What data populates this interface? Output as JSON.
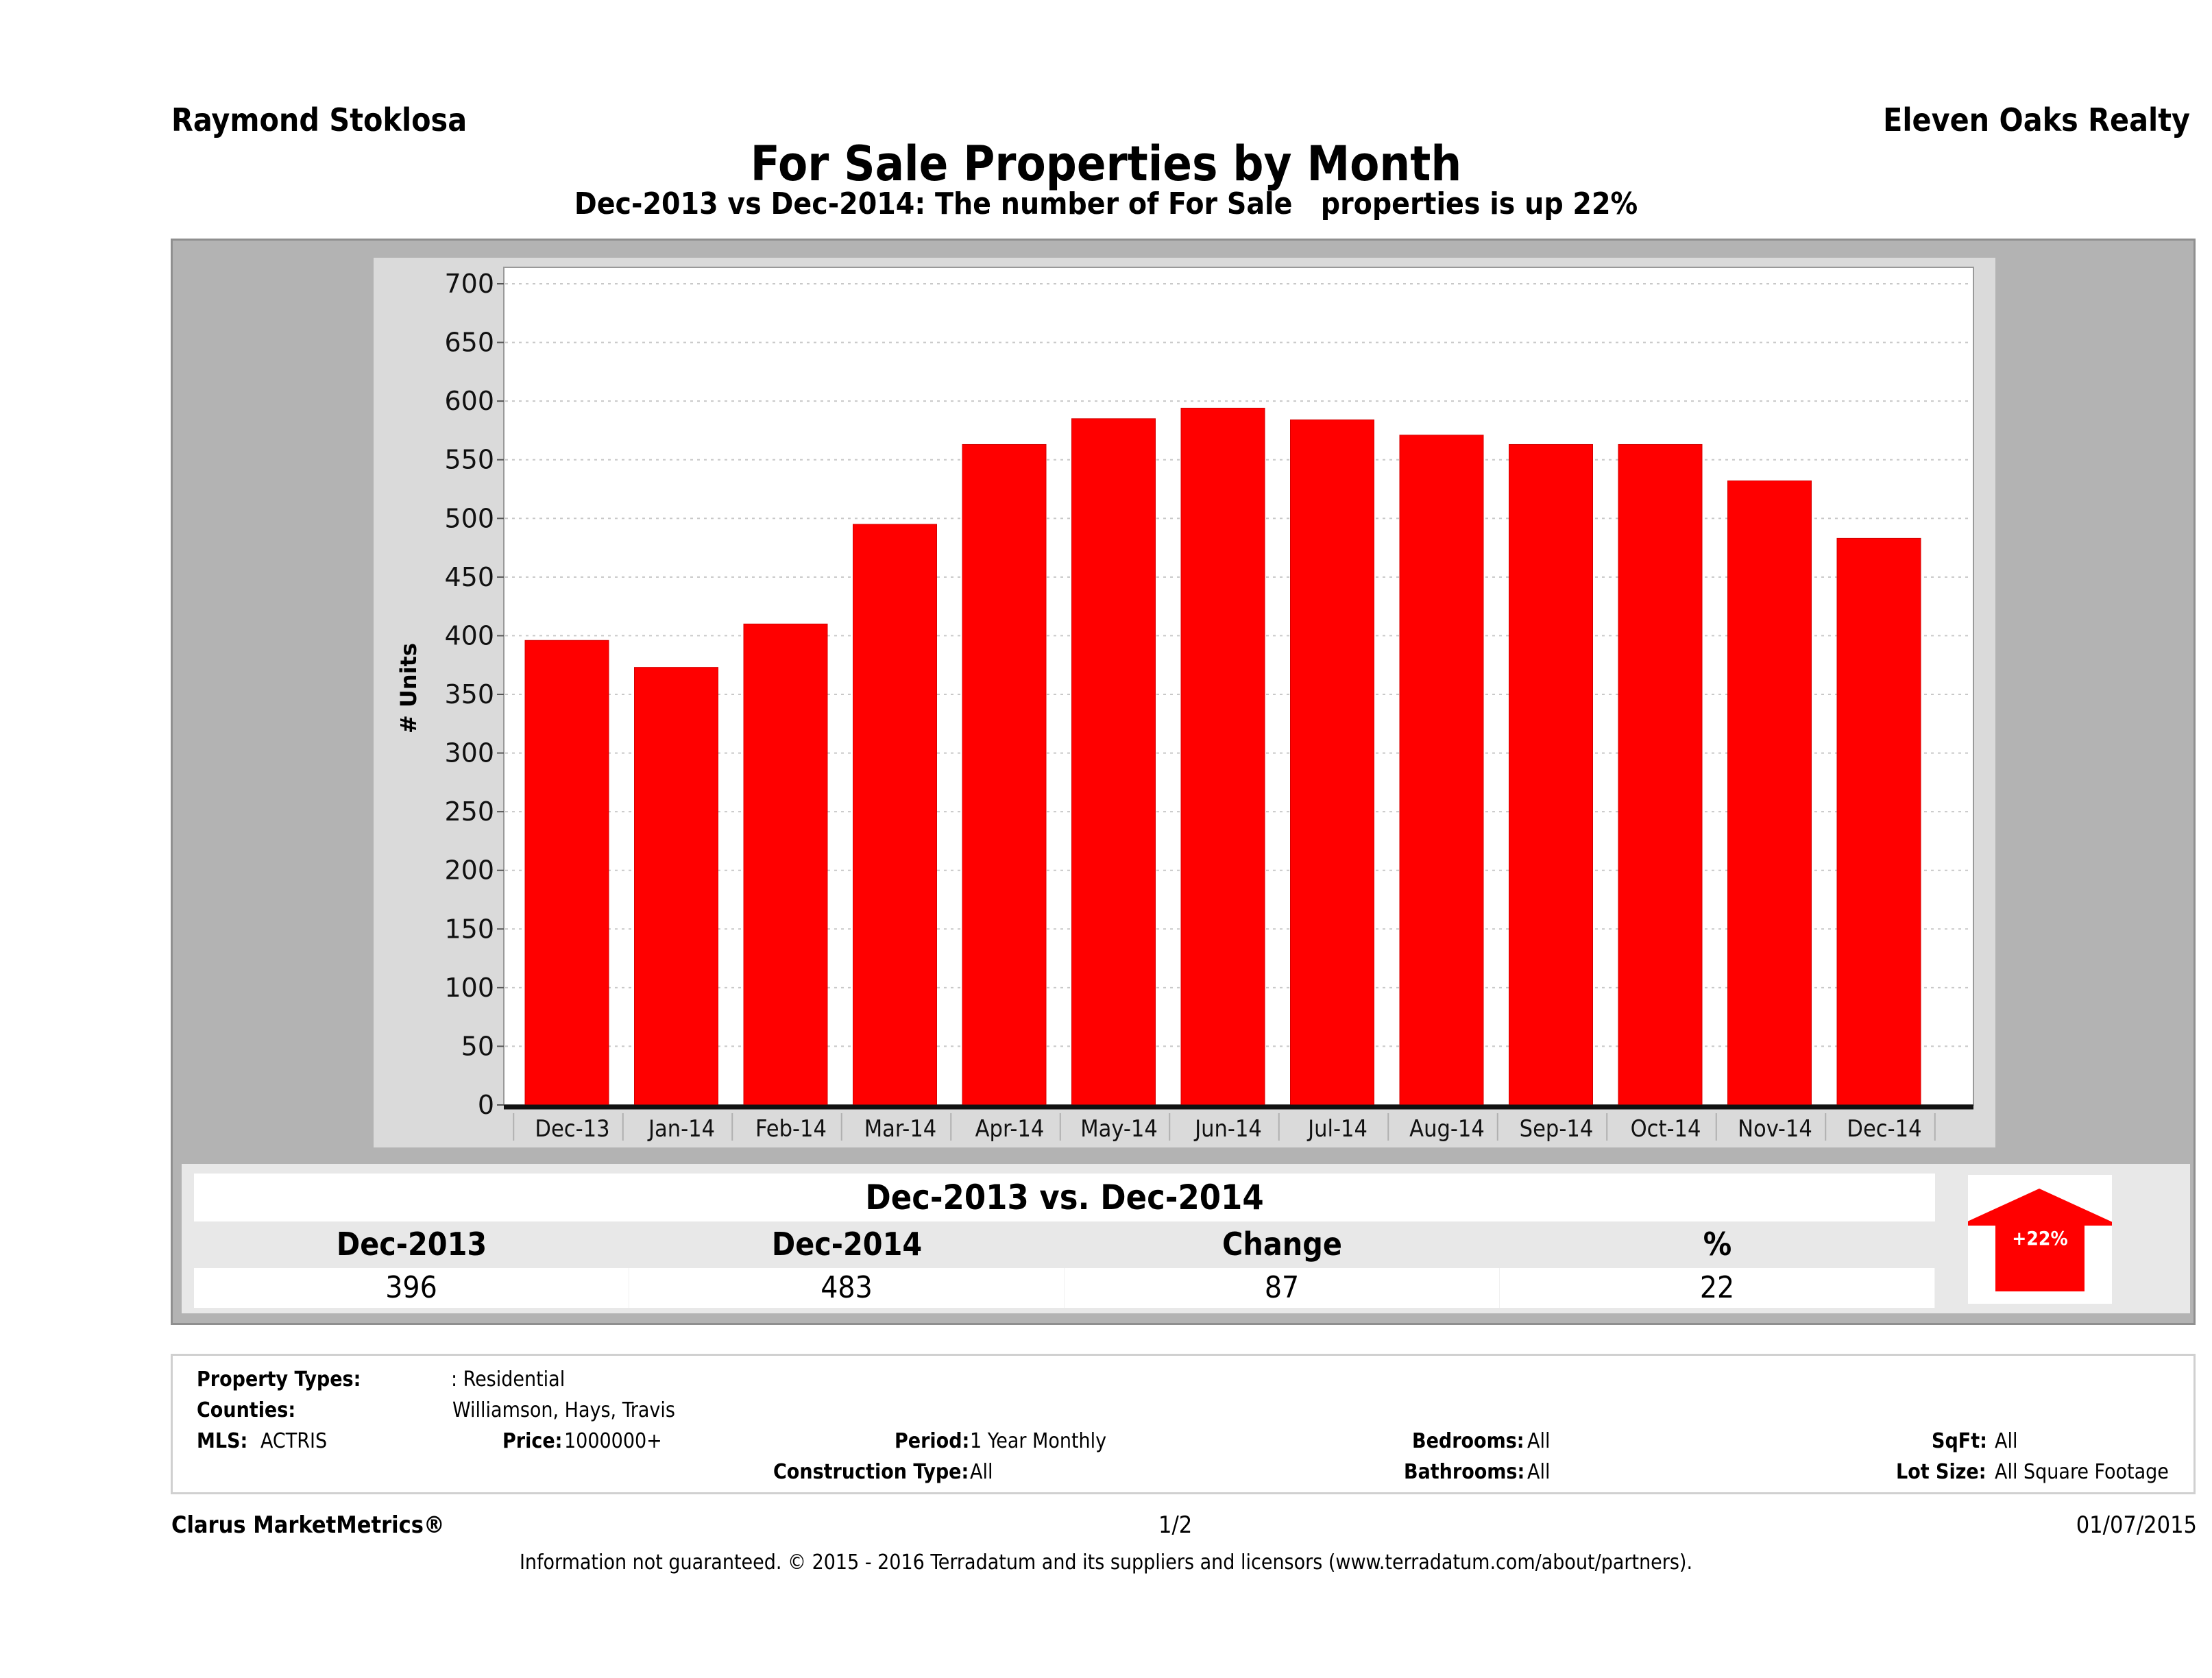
{
  "header": {
    "agent_name": "Raymond Stoklosa",
    "brokerage": "Eleven Oaks Realty",
    "title": "For Sale Properties by Month",
    "subtitle": "Dec-2013 vs Dec-2014: The number of For Sale   properties is up 22%"
  },
  "chart_data": {
    "type": "bar",
    "title": "For Sale Properties by Month",
    "xlabel": "",
    "ylabel": "# Units",
    "categories": [
      "Dec-13",
      "Jan-14",
      "Feb-14",
      "Mar-14",
      "Apr-14",
      "May-14",
      "Jun-14",
      "Jul-14",
      "Aug-14",
      "Sep-14",
      "Oct-14",
      "Nov-14",
      "Dec-14"
    ],
    "values": [
      396,
      373,
      410,
      495,
      563,
      585,
      594,
      584,
      571,
      563,
      563,
      532,
      483
    ],
    "ylim": [
      0,
      700
    ],
    "yticks": [
      0,
      50,
      100,
      150,
      200,
      250,
      300,
      350,
      400,
      450,
      500,
      550,
      600,
      650,
      700
    ],
    "grid": true,
    "bar_color": "#ff0000",
    "legend": "none"
  },
  "summary": {
    "heading": "Dec-2013 vs. Dec-2014",
    "columns": [
      "Dec-2013",
      "Dec-2014",
      "Change",
      "%"
    ],
    "values": [
      "396",
      "483",
      "87",
      "22"
    ],
    "badge": "+22%",
    "badge_color": "#ff0000",
    "trend_icon": "up-arrow-icon"
  },
  "details": {
    "property_types_label": "Property Types:",
    "property_types_value": ": Residential",
    "counties_label": "Counties:",
    "counties_value": "Williamson, Hays, Travis",
    "mls_label": "MLS:",
    "mls_value": "ACTRIS",
    "price_label": "Price:",
    "price_value": "1000000+",
    "period_label": "Period:",
    "period_value": "1 Year Monthly",
    "construction_label": "Construction Type:",
    "construction_value": "All",
    "bedrooms_label": "Bedrooms:",
    "bedrooms_value": "All",
    "bathrooms_label": "Bathrooms:",
    "bathrooms_value": "All",
    "sqft_label": "SqFt:",
    "sqft_value": "All",
    "lotsize_label": "Lot Size:",
    "lotsize_value": "All Square Footage"
  },
  "footer": {
    "brand": "Clarus MarketMetrics®",
    "page": "1/2",
    "date": "01/07/2015",
    "disclaimer": "Information not guaranteed. © 2015 - 2016 Terradatum and its suppliers and licensors (www.terradatum.com/about/partners)."
  }
}
